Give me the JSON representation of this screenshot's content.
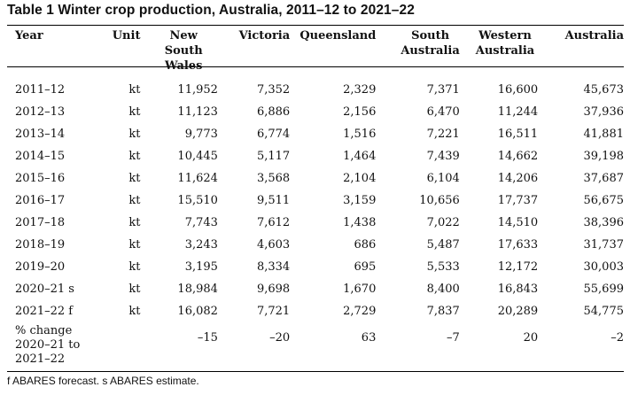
{
  "title": "Table 1 Winter crop production, Australia, 2011–12 to 2021–22",
  "columns": {
    "year": "Year",
    "unit": "Unit",
    "nsw": "New South Wales",
    "vic": "Victoria",
    "qld": "Queensland",
    "sa": "South Australia",
    "wa": "Western Australia",
    "aus": "Australia"
  },
  "rows": [
    {
      "year": "2011–12",
      "unit": "kt",
      "nsw": "11,952",
      "vic": "7,352",
      "qld": "2,329",
      "sa": "7,371",
      "wa": "16,600",
      "aus": "45,673"
    },
    {
      "year": "2012–13",
      "unit": "kt",
      "nsw": "11,123",
      "vic": "6,886",
      "qld": "2,156",
      "sa": "6,470",
      "wa": "11,244",
      "aus": "37,936"
    },
    {
      "year": "2013–14",
      "unit": "kt",
      "nsw": "9,773",
      "vic": "6,774",
      "qld": "1,516",
      "sa": "7,221",
      "wa": "16,511",
      "aus": "41,881"
    },
    {
      "year": "2014–15",
      "unit": "kt",
      "nsw": "10,445",
      "vic": "5,117",
      "qld": "1,464",
      "sa": "7,439",
      "wa": "14,662",
      "aus": "39,198"
    },
    {
      "year": "2015–16",
      "unit": "kt",
      "nsw": "11,624",
      "vic": "3,568",
      "qld": "2,104",
      "sa": "6,104",
      "wa": "14,206",
      "aus": "37,687"
    },
    {
      "year": "2016–17",
      "unit": "kt",
      "nsw": "15,510",
      "vic": "9,511",
      "qld": "3,159",
      "sa": "10,656",
      "wa": "17,737",
      "aus": "56,675"
    },
    {
      "year": "2017–18",
      "unit": "kt",
      "nsw": "7,743",
      "vic": "7,612",
      "qld": "1,438",
      "sa": "7,022",
      "wa": "14,510",
      "aus": "38,396"
    },
    {
      "year": "2018–19",
      "unit": "kt",
      "nsw": "3,243",
      "vic": "4,603",
      "qld": "686",
      "sa": "5,487",
      "wa": "17,633",
      "aus": "31,737"
    },
    {
      "year": "2019–20",
      "unit": "kt",
      "nsw": "3,195",
      "vic": "8,334",
      "qld": "695",
      "sa": "5,533",
      "wa": "12,172",
      "aus": "30,003"
    },
    {
      "year": "2020–21 s",
      "unit": "kt",
      "nsw": "18,984",
      "vic": "9,698",
      "qld": "1,670",
      "sa": "8,400",
      "wa": "16,843",
      "aus": "55,699"
    },
    {
      "year": "2021–22 f",
      "unit": "kt",
      "nsw": "16,082",
      "vic": "7,721",
      "qld": "2,729",
      "sa": "7,837",
      "wa": "20,289",
      "aus": "54,775"
    }
  ],
  "change_row": {
    "label_line1": "% change",
    "label_line2": "2020–21 to",
    "label_line3": "2021–22",
    "nsw": "–15",
    "vic": "–20",
    "qld": "63",
    "sa": "–7",
    "wa": "20",
    "aus": "–2"
  },
  "footnote": "f ABARES forecast. s ABARES estimate."
}
